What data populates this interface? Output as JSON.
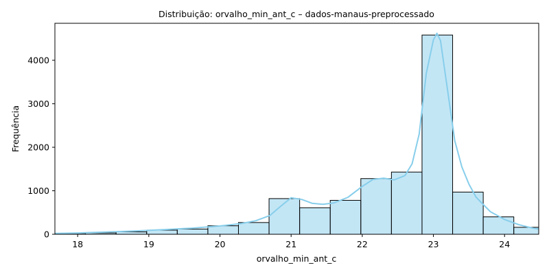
{
  "chart_data": {
    "type": "bar",
    "subtype": "histogram-with-kde",
    "title": "Distribuição: orvalho_min_ant_c – dados-manaus-preprocessado",
    "xlabel": "orvalho_min_ant_c",
    "ylabel": "Frequência",
    "xlim": [
      17.68,
      24.48
    ],
    "ylim": [
      0,
      4850
    ],
    "xticks": [
      "18",
      "19",
      "20",
      "21",
      "22",
      "23",
      "24"
    ],
    "yticks": [
      "0",
      "1000",
      "2000",
      "3000",
      "4000"
    ],
    "bins": [
      {
        "x0": 17.68,
        "x1": 18.11,
        "count": 20
      },
      {
        "x0": 18.11,
        "x1": 18.54,
        "count": 30
      },
      {
        "x0": 18.54,
        "x1": 18.97,
        "count": 55
      },
      {
        "x0": 18.97,
        "x1": 19.4,
        "count": 95
      },
      {
        "x0": 19.4,
        "x1": 19.83,
        "count": 120
      },
      {
        "x0": 19.83,
        "x1": 20.26,
        "count": 195
      },
      {
        "x0": 20.26,
        "x1": 20.69,
        "count": 270
      },
      {
        "x0": 20.69,
        "x1": 21.12,
        "count": 820
      },
      {
        "x0": 21.12,
        "x1": 21.55,
        "count": 610
      },
      {
        "x0": 21.55,
        "x1": 21.98,
        "count": 780
      },
      {
        "x0": 21.98,
        "x1": 22.41,
        "count": 1280
      },
      {
        "x0": 22.41,
        "x1": 22.84,
        "count": 1430
      },
      {
        "x0": 22.84,
        "x1": 23.27,
        "count": 4580
      },
      {
        "x0": 23.27,
        "x1": 23.7,
        "count": 970
      },
      {
        "x0": 23.7,
        "x1": 24.13,
        "count": 400
      },
      {
        "x0": 24.13,
        "x1": 24.56,
        "count": 160
      }
    ],
    "kde": {
      "x": [
        17.68,
        18.0,
        18.4,
        18.8,
        19.2,
        19.6,
        20.0,
        20.3,
        20.5,
        20.7,
        20.85,
        21.0,
        21.15,
        21.3,
        21.45,
        21.6,
        21.8,
        22.0,
        22.15,
        22.3,
        22.45,
        22.6,
        22.7,
        22.8,
        22.9,
        23.0,
        23.05,
        23.1,
        23.2,
        23.3,
        23.4,
        23.5,
        23.6,
        23.8,
        24.0,
        24.2,
        24.4,
        24.48
      ],
      "y": [
        20,
        30,
        50,
        75,
        105,
        140,
        190,
        245,
        310,
        430,
        640,
        840,
        800,
        710,
        690,
        720,
        850,
        1100,
        1260,
        1290,
        1250,
        1350,
        1620,
        2300,
        3700,
        4470,
        4620,
        4450,
        3300,
        2150,
        1550,
        1150,
        850,
        520,
        340,
        220,
        140,
        120
      ]
    },
    "colors": {
      "bar_fill": "#87ceeb",
      "bar_fill_opacity": 0.5,
      "bar_edge": "#000000",
      "kde_line": "#87ceeb",
      "axis": "#000000"
    },
    "grid": false,
    "legend": "none"
  }
}
